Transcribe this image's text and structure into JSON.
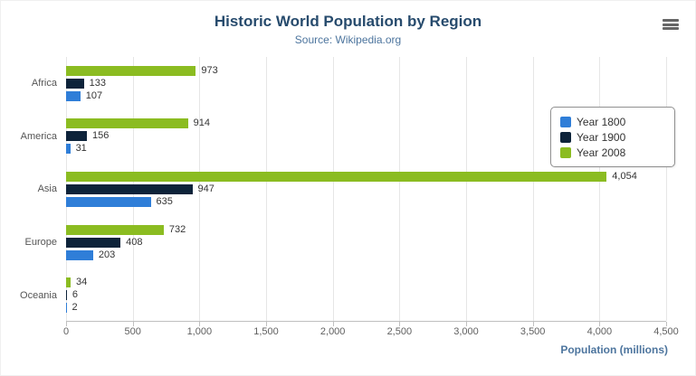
{
  "chart_data": {
    "type": "bar",
    "title": "Historic World Population by Region",
    "subtitle": "Source: Wikipedia.org",
    "categories": [
      "Africa",
      "America",
      "Asia",
      "Europe",
      "Oceania"
    ],
    "series": [
      {
        "name": "Year 1800",
        "color": "#2f7ed8",
        "values": [
          107,
          31,
          635,
          203,
          2
        ]
      },
      {
        "name": "Year 1900",
        "color": "#0d233a",
        "values": [
          133,
          156,
          947,
          408,
          6
        ]
      },
      {
        "name": "Year 2008",
        "color": "#8bbc21",
        "values": [
          973,
          914,
          4054,
          732,
          34
        ]
      }
    ],
    "bar_order_top_to_bottom": [
      "Year 2008",
      "Year 1900",
      "Year 1800"
    ],
    "xlabel": "Population (millions)",
    "xlim": [
      0,
      4500
    ],
    "tick_interval": 500,
    "tick_labels": [
      "0",
      "500",
      "1,000",
      "1,500",
      "2,000",
      "2,500",
      "3,000",
      "3,500",
      "4,000",
      "4,500"
    ],
    "legend_position": "right",
    "legend_entries": [
      "Year 1800",
      "Year 1900",
      "Year 2008"
    ],
    "grid": true
  },
  "menu": {
    "icon": "hamburger-menu"
  }
}
